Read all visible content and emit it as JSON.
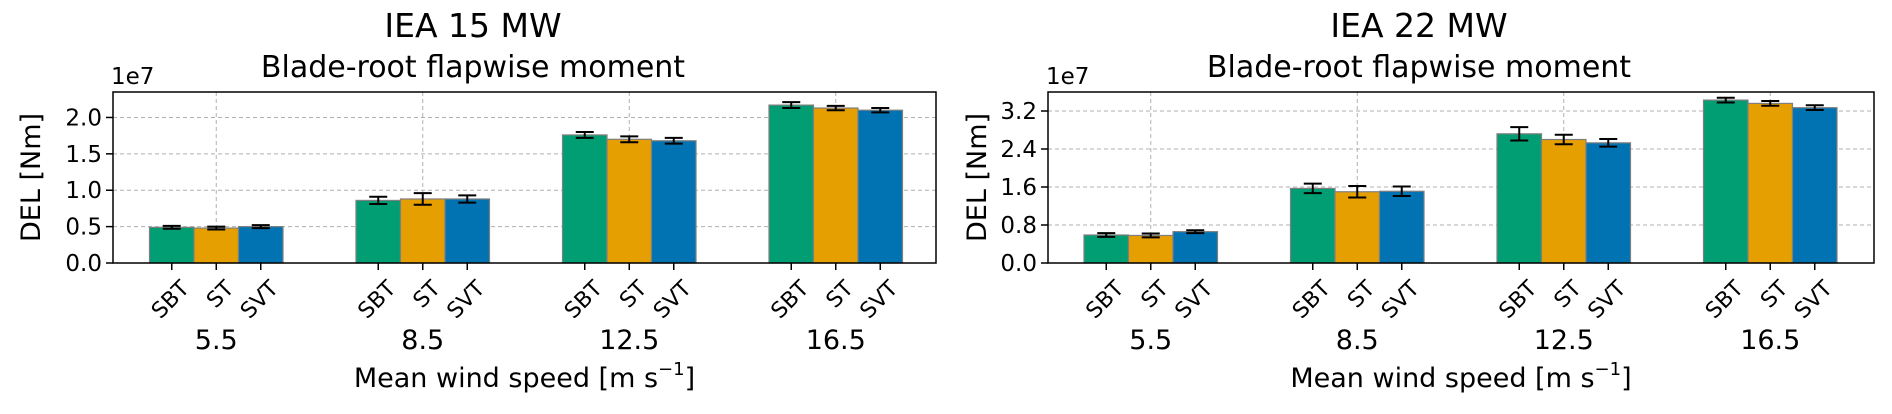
{
  "chart_data": [
    {
      "type": "bar",
      "title": "IEA 15 MW",
      "subtitle": "Blade-root flapwise moment",
      "xlabel": "Mean wind speed [m s",
      "xlabel_sup": "−1",
      "xlabel_end": "]",
      "ylabel": "DEL [Nm]",
      "scale_label": "1e7",
      "ylim": [
        0,
        2.35
      ],
      "yticks": [
        "0.0",
        "0.5",
        "1.0",
        "1.5",
        "2.0"
      ],
      "ytick_values": [
        0.0,
        0.5,
        1.0,
        1.5,
        2.0
      ],
      "grid": true,
      "groups": [
        "5.5",
        "8.5",
        "12.5",
        "16.5"
      ],
      "bar_labels": [
        "SBT",
        "ST",
        "SVT"
      ],
      "series": [
        {
          "name": "SBT",
          "color": "#029e73",
          "values": [
            0.49,
            0.86,
            1.76,
            2.17
          ],
          "errors": [
            0.02,
            0.05,
            0.04,
            0.04
          ]
        },
        {
          "name": "ST",
          "color": "#e69f00",
          "values": [
            0.48,
            0.88,
            1.7,
            2.13
          ],
          "errors": [
            0.02,
            0.08,
            0.04,
            0.03
          ]
        },
        {
          "name": "SVT",
          "color": "#0173b2",
          "values": [
            0.5,
            0.88,
            1.68,
            2.1
          ],
          "errors": [
            0.02,
            0.05,
            0.04,
            0.03
          ]
        }
      ]
    },
    {
      "type": "bar",
      "title": "IEA 22 MW",
      "subtitle": "Blade-root flapwise moment",
      "xlabel": "Mean wind speed [m s",
      "xlabel_sup": "−1",
      "xlabel_end": "]",
      "ylabel": "DEL [Nm]",
      "scale_label": "1e7",
      "ylim": [
        0,
        3.6
      ],
      "yticks": [
        "0.0",
        "0.8",
        "1.6",
        "2.4",
        "3.2"
      ],
      "ytick_values": [
        0.0,
        0.8,
        1.6,
        2.4,
        3.2
      ],
      "grid": true,
      "groups": [
        "5.5",
        "8.5",
        "12.5",
        "16.5"
      ],
      "bar_labels": [
        "SBT",
        "ST",
        "SVT"
      ],
      "series": [
        {
          "name": "SBT",
          "color": "#029e73",
          "values": [
            0.59,
            1.57,
            2.72,
            3.43
          ],
          "errors": [
            0.04,
            0.1,
            0.14,
            0.05
          ]
        },
        {
          "name": "ST",
          "color": "#e69f00",
          "values": [
            0.58,
            1.5,
            2.6,
            3.36
          ],
          "errors": [
            0.04,
            0.12,
            0.1,
            0.05
          ]
        },
        {
          "name": "SVT",
          "color": "#0173b2",
          "values": [
            0.66,
            1.51,
            2.53,
            3.27
          ],
          "errors": [
            0.03,
            0.1,
            0.08,
            0.05
          ]
        }
      ]
    }
  ]
}
